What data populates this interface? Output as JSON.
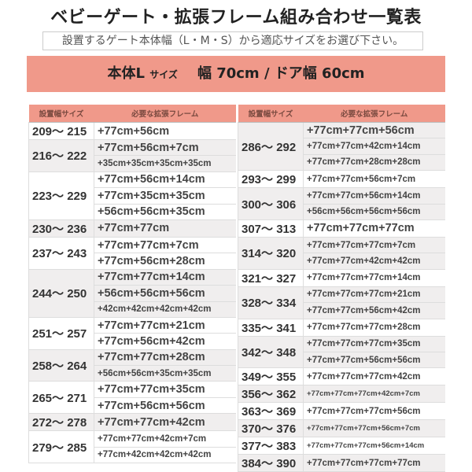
{
  "title": "ベビーゲート・拡張フレーム組み合わせ一覧表",
  "subtitle": "設置するゲート本体幅（L・M・S）から適応サイズをお選び下さい。",
  "band": {
    "main": "本体L",
    "size_word": "サイズ",
    "spec": "幅 70cm / ドア幅 60cm"
  },
  "headers": {
    "size": "設置幅サイズ",
    "frames": "必要な拡張フレーム"
  },
  "colors": {
    "accent": "#f0998a",
    "row_shade": "#f0eeee"
  },
  "left": [
    {
      "size": "209～ 215",
      "frames": [
        "+77cm+56cm"
      ]
    },
    {
      "size": "216～ 222",
      "frames": [
        "+77cm+56cm+7cm",
        "+35cm+35cm+35cm+35cm"
      ]
    },
    {
      "size": "223～ 229",
      "frames": [
        "+77cm+56cm+14cm",
        "+77cm+35cm+35cm",
        "+56cm+56cm+35cm"
      ]
    },
    {
      "size": "230～ 236",
      "frames": [
        "+77cm+77cm"
      ]
    },
    {
      "size": "237～ 243",
      "frames": [
        "+77cm+77cm+7cm",
        "+77cm+56cm+28cm"
      ]
    },
    {
      "size": "244～ 250",
      "frames": [
        "+77cm+77cm+14cm",
        "+56cm+56cm+56cm",
        "+42cm+42cm+42cm+42cm"
      ]
    },
    {
      "size": "251～ 257",
      "frames": [
        "+77cm+77cm+21cm",
        "+77cm+56cm+42cm"
      ]
    },
    {
      "size": "258～ 264",
      "frames": [
        "+77cm+77cm+28cm",
        "+56cm+56cm+35cm+35cm"
      ]
    },
    {
      "size": "265～ 271",
      "frames": [
        "+77cm+77cm+35cm",
        "+77cm+56cm+56cm"
      ]
    },
    {
      "size": "272～ 278",
      "frames": [
        "+77cm+77cm+42cm"
      ]
    },
    {
      "size": "279～ 285",
      "frames": [
        "+77cm+77cm+42cm+7cm",
        "+77cm+42cm+42cm+42cm"
      ]
    }
  ],
  "right": [
    {
      "size": "286～ 292",
      "frames": [
        "+77cm+77cm+56cm",
        "+77cm+77cm+42cm+14cm",
        "+77cm+77cm+28cm+28cm"
      ]
    },
    {
      "size": "293～ 299",
      "frames": [
        "+77cm+77cm+56cm+7cm"
      ]
    },
    {
      "size": "300～ 306",
      "frames": [
        "+77cm+77cm+56cm+14cm",
        "+56cm+56cm+56cm+56cm"
      ]
    },
    {
      "size": "307～ 313",
      "frames": [
        "+77cm+77cm+77cm"
      ]
    },
    {
      "size": "314～ 320",
      "frames": [
        "+77cm+77cm+77cm+7cm",
        "+77cm+77cm+42cm+42cm"
      ]
    },
    {
      "size": "321～ 327",
      "frames": [
        "+77cm+77cm+77cm+14cm"
      ]
    },
    {
      "size": "328～ 334",
      "frames": [
        "+77cm+77cm+77cm+21cm",
        "+77cm+77cm+56cm+42cm"
      ]
    },
    {
      "size": "335～ 341",
      "frames": [
        "+77cm+77cm+77cm+28cm"
      ]
    },
    {
      "size": "342～ 348",
      "frames": [
        "+77cm+77cm+77cm+35cm",
        "+77cm+77cm+56cm+56cm"
      ]
    },
    {
      "size": "349～ 355",
      "frames": [
        "+77cm+77cm+77cm+42cm"
      ]
    },
    {
      "size": "356～ 362",
      "frames": [
        "+77cm+77cm+77cm+42cm+7cm"
      ]
    },
    {
      "size": "363～ 369",
      "frames": [
        "+77cm+77cm+77cm+56cm"
      ]
    },
    {
      "size": "370～ 376",
      "frames": [
        "+77cm+77cm+77cm+56cm+7cm"
      ]
    },
    {
      "size": "377～ 383",
      "frames": [
        "+77cm+77cm+77cm+56cm+14cm"
      ]
    },
    {
      "size": "384～ 390",
      "frames": [
        "+77cm+77cm+77cm+77cm"
      ]
    }
  ]
}
